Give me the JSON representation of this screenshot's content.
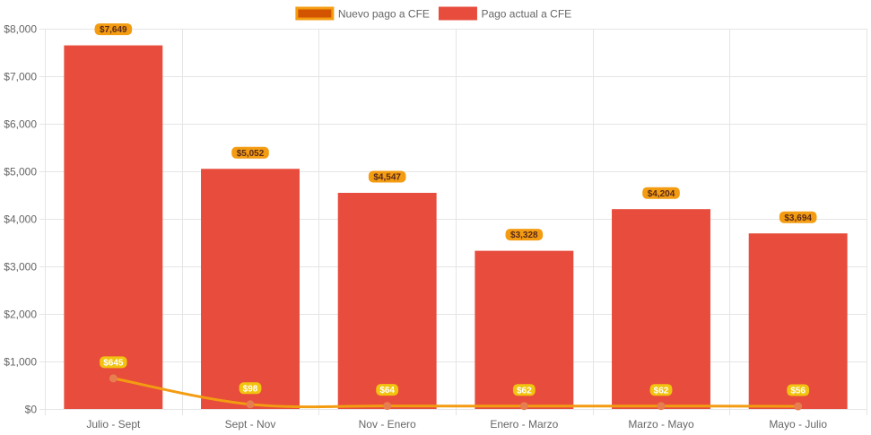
{
  "chart_data": {
    "type": "bar",
    "categories": [
      "Julio - Sept",
      "Sept - Nov",
      "Nov - Enero",
      "Enero - Marzo",
      "Marzo - Mayo",
      "Mayo - Julio"
    ],
    "series": [
      {
        "name": "Pago actual a CFE",
        "type": "bar",
        "values": [
          7649,
          5052,
          4547,
          3328,
          4204,
          3694
        ],
        "labels": [
          "$7,649",
          "$5,052",
          "$4,547",
          "$3,328",
          "$4,204",
          "$3,694"
        ],
        "color": "#e74c3c"
      },
      {
        "name": "Nuevo pago a CFE",
        "type": "line",
        "values": [
          645,
          98,
          64,
          62,
          62,
          56
        ],
        "labels": [
          "$645",
          "$98",
          "$64",
          "$62",
          "$62",
          "$56"
        ],
        "color": "#f39c12"
      }
    ],
    "ylim": [
      0,
      8000
    ],
    "yticks": [
      0,
      1000,
      2000,
      3000,
      4000,
      5000,
      6000,
      7000,
      8000
    ],
    "ytick_labels": [
      "$0",
      "$1,000",
      "$2,000",
      "$3,000",
      "$4,000",
      "$5,000",
      "$6,000",
      "$7,000",
      "$8,000"
    ],
    "legend": {
      "position": "top",
      "items": [
        {
          "label": "Nuevo pago a CFE",
          "color": "#d35400",
          "border": "#f39c12"
        },
        {
          "label": "Pago actual a CFE",
          "color": "#e74c3c",
          "border": "#e74c3c"
        }
      ]
    },
    "grid": true,
    "colors": {
      "bar_label_bg": "#f39c12",
      "bar_label_text": "#5a2a1a",
      "line_label_bg": "#f1c40f",
      "line_label_text": "#ffffff",
      "line_point": "#e67e50",
      "grid": "#e5e5e5"
    }
  }
}
